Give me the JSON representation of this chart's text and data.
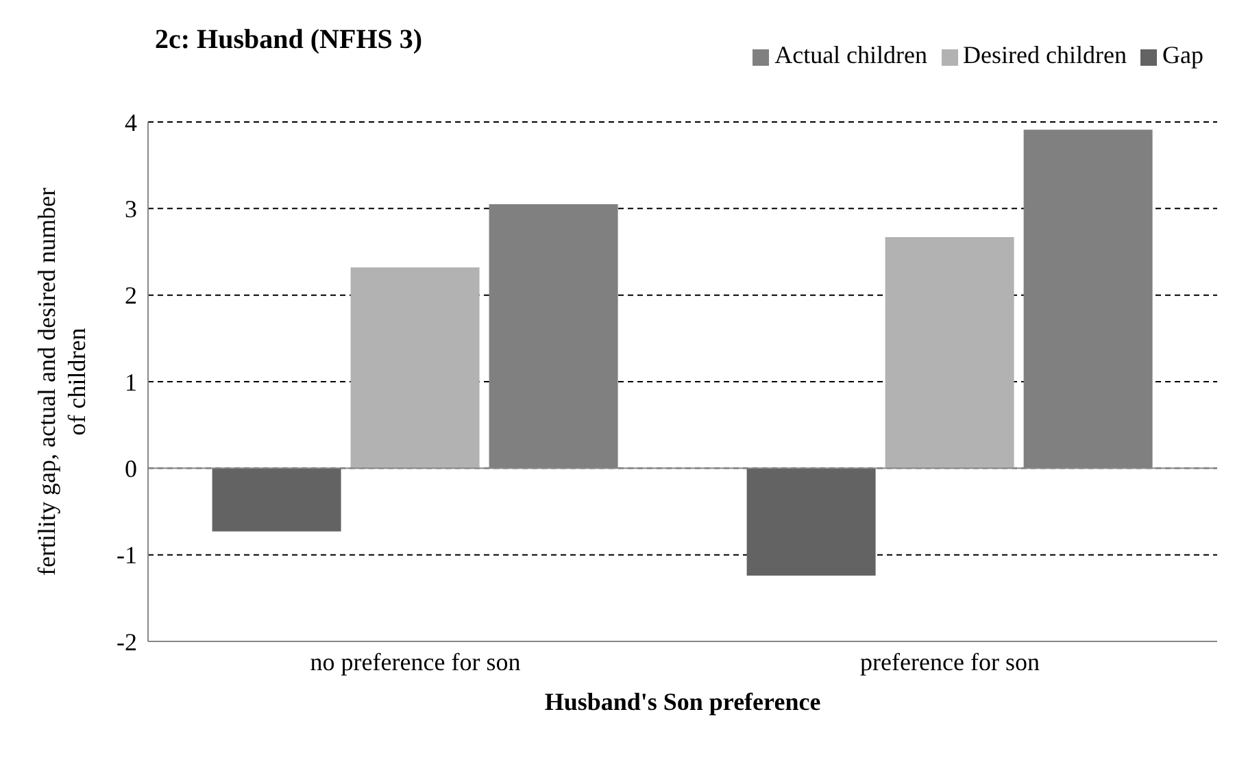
{
  "chart_data": {
    "type": "bar",
    "title": "2c: Husband (NFHS 3)",
    "xlabel": "Husband's Son preference",
    "ylabel": "fertility gap, actual and desired number of children",
    "categories": [
      "no preference for son",
      "preference for son"
    ],
    "series": [
      {
        "name": "Gap",
        "color": "#636363",
        "values": [
          -0.73,
          -1.24
        ]
      },
      {
        "name": "Desired children",
        "color": "#b2b2b2",
        "values": [
          2.32,
          2.67
        ]
      },
      {
        "name": "Actual children",
        "color": "#808080",
        "values": [
          3.05,
          3.91
        ]
      }
    ],
    "ylim": [
      -2,
      4
    ],
    "yticks": [
      -2,
      -1,
      0,
      1,
      2,
      3,
      4
    ],
    "grid": "y",
    "line_style": "dashed",
    "legend": "top right"
  }
}
